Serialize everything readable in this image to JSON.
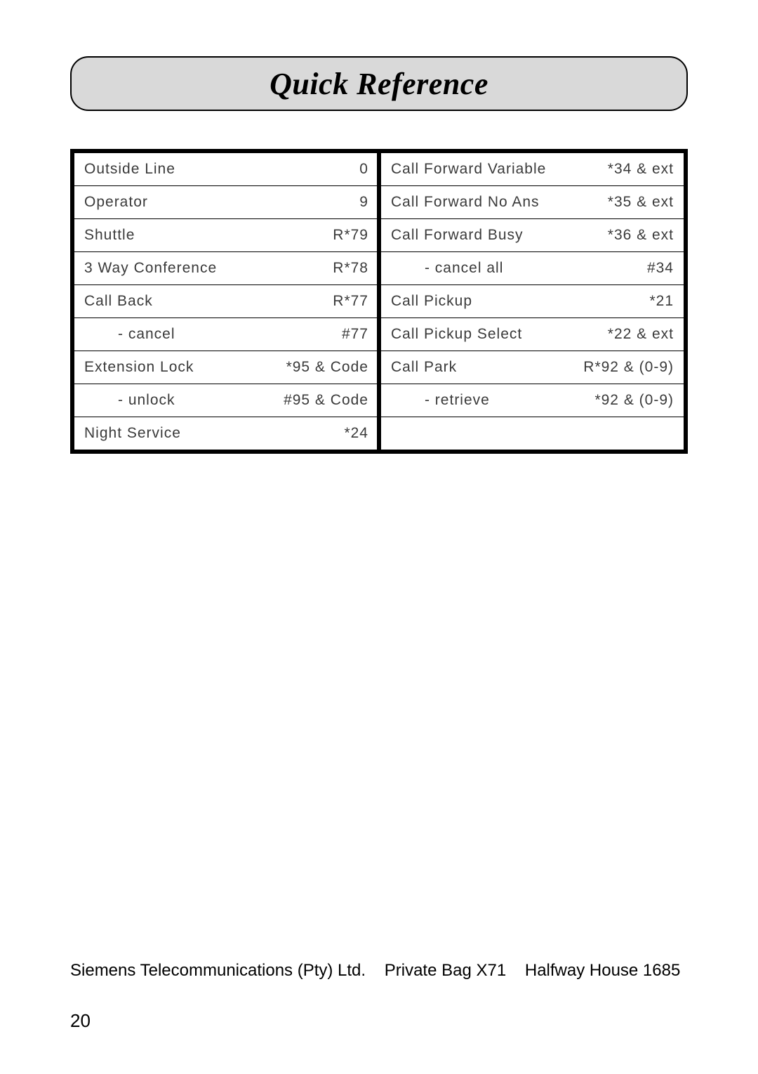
{
  "title": "Quick Reference",
  "left_rows": [
    {
      "label": "Outside Line",
      "code": "0",
      "indent": false
    },
    {
      "label": "Operator",
      "code": "9",
      "indent": false
    },
    {
      "label": "Shuttle",
      "code": "R*79",
      "indent": false
    },
    {
      "label": "3 Way Conference",
      "code": "R*78",
      "indent": false
    },
    {
      "label": "Call Back",
      "code": "R*77",
      "indent": false
    },
    {
      "label": "- cancel",
      "code": "#77",
      "indent": true
    },
    {
      "label": "Extension Lock",
      "code": "*95 & Code",
      "indent": false
    },
    {
      "label": "- unlock",
      "code": "#95 & Code",
      "indent": true
    },
    {
      "label": "Night Service",
      "code": "*24",
      "indent": false
    }
  ],
  "right_rows": [
    {
      "label": "Call Forward Variable",
      "code": "*34 & ext",
      "indent": false
    },
    {
      "label": "Call Forward No Ans",
      "code": "*35 & ext",
      "indent": false
    },
    {
      "label": "Call Forward Busy",
      "code": "*36 & ext",
      "indent": false
    },
    {
      "label": "- cancel all",
      "code": "#34",
      "indent": true
    },
    {
      "label": "Call Pickup",
      "code": "*21",
      "indent": false
    },
    {
      "label": "Call Pickup Select",
      "code": "*22 & ext",
      "indent": false
    },
    {
      "label": "Call Park",
      "code": "R*92 & (0-9)",
      "indent": false
    },
    {
      "label": "- retrieve",
      "code": "*92 & (0-9)",
      "indent": true
    },
    {
      "label": "",
      "code": "",
      "indent": false
    }
  ],
  "footer": {
    "company": "Siemens Telecommunications (Pty) Ltd.",
    "addr1": "Private Bag X71",
    "addr2": "Halfway House 1685"
  },
  "page_number": "20"
}
